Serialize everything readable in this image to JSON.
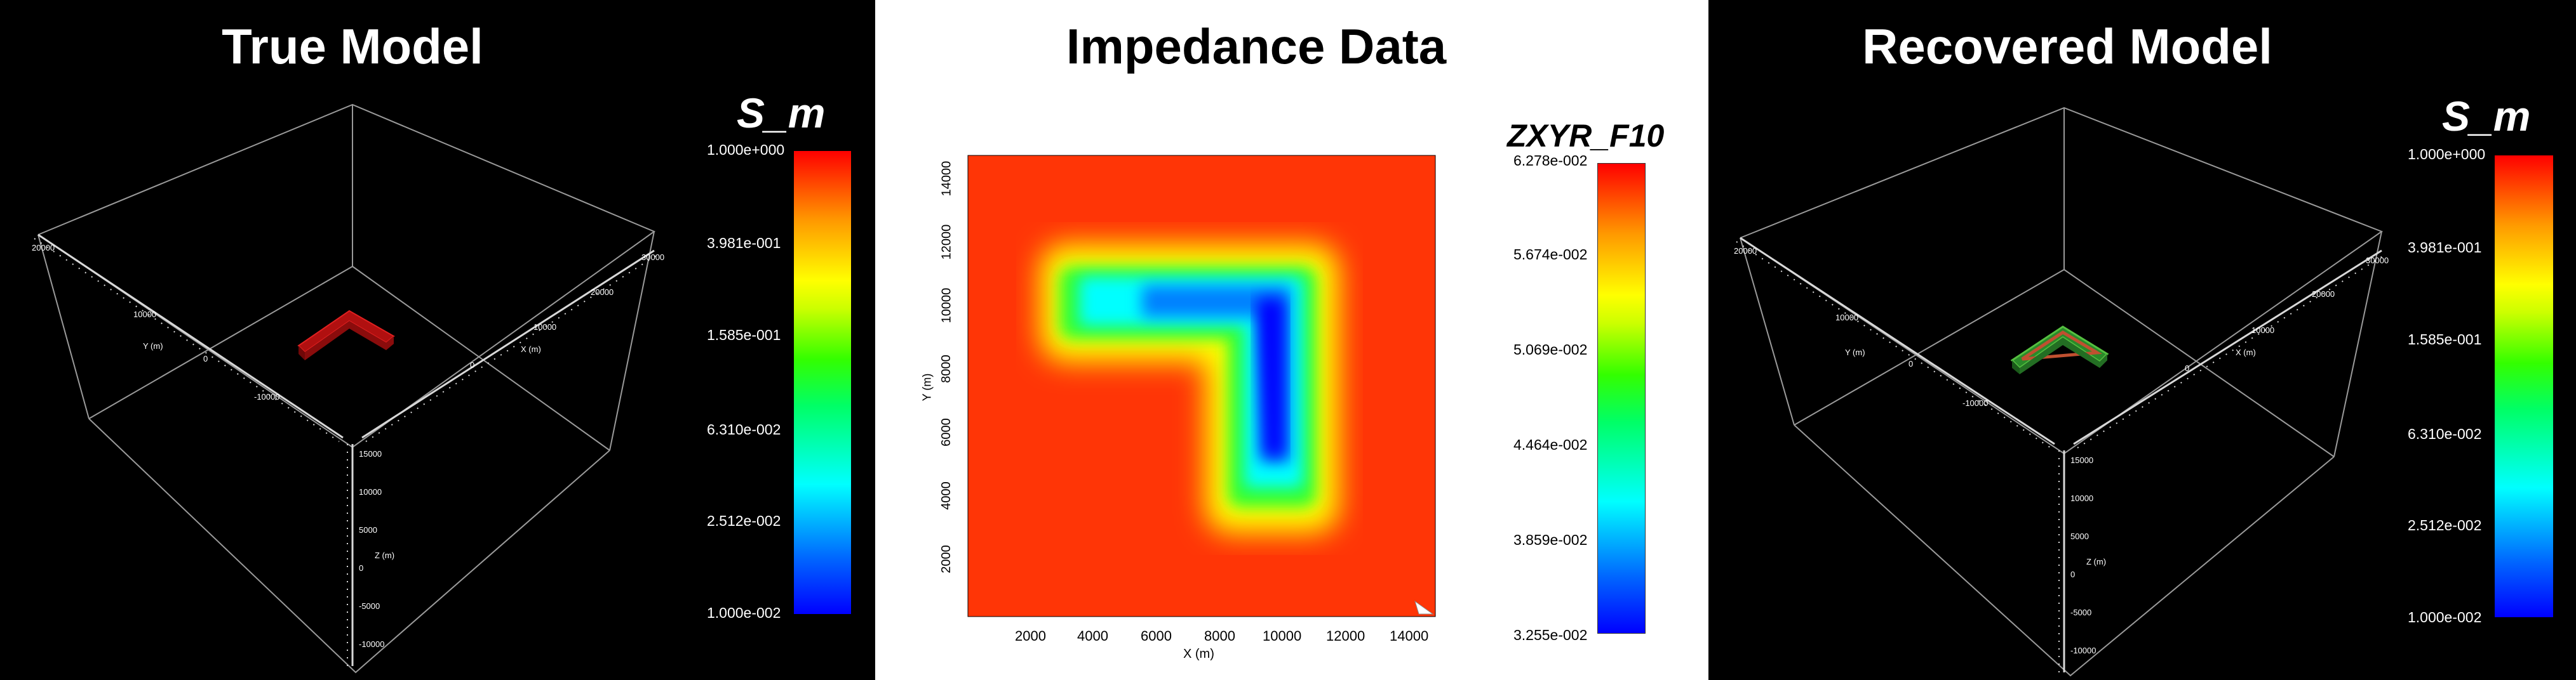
{
  "panels": {
    "true_model": {
      "title": "True Model",
      "colorbar": {
        "title": "S_m",
        "ticks": [
          "1.000e+000",
          "3.981e-001",
          "1.585e-001",
          "6.310e-002",
          "2.512e-002",
          "1.000e-002"
        ]
      },
      "axes": {
        "y_label": "Y (m)",
        "x_label": "X (m)",
        "z_label": "Z (m)",
        "y_ticks": [
          "20000",
          "10000",
          "0",
          "-10000"
        ],
        "x_ticks": [
          "0",
          "10000",
          "20000",
          "30000"
        ],
        "z_ticks": [
          "15000",
          "10000",
          "5000",
          "0",
          "-5000",
          "-10000"
        ]
      },
      "block_color": "#b01010"
    },
    "impedance": {
      "title": "Impedance Data",
      "colorbar": {
        "title": "ZXYR_F10",
        "ticks": [
          "6.278e-002",
          "5.674e-002",
          "5.069e-002",
          "4.464e-002",
          "3.859e-002",
          "3.255e-002"
        ]
      },
      "x_axis_label": "X (m)",
      "y_axis_label": "Y (m)",
      "x_ticks": [
        "2000",
        "4000",
        "6000",
        "8000",
        "10000",
        "12000",
        "14000"
      ],
      "y_ticks": [
        "2000",
        "4000",
        "6000",
        "8000",
        "10000",
        "12000",
        "14000"
      ]
    },
    "recovered_model": {
      "title": "Recovered Model",
      "colorbar": {
        "title": "S_m",
        "ticks": [
          "1.000e+000",
          "3.981e-001",
          "1.585e-001",
          "6.310e-002",
          "2.512e-002",
          "1.000e-002"
        ]
      },
      "axes": {
        "y_label": "Y (m)",
        "x_label": "X (m)",
        "z_label": "Z (m)",
        "y_ticks": [
          "20000",
          "10000",
          "0",
          "-10000"
        ],
        "x_ticks": [
          "0",
          "10000",
          "20000",
          "30000"
        ],
        "z_ticks": [
          "15000",
          "10000",
          "5000",
          "0",
          "-5000",
          "-10000"
        ]
      },
      "block_color": "#2a8a2a"
    }
  },
  "colors": {
    "background_dark": "#000000",
    "background_light": "#ffffff",
    "anomaly_low": "#0000ff",
    "background_high": "#ff2200"
  }
}
